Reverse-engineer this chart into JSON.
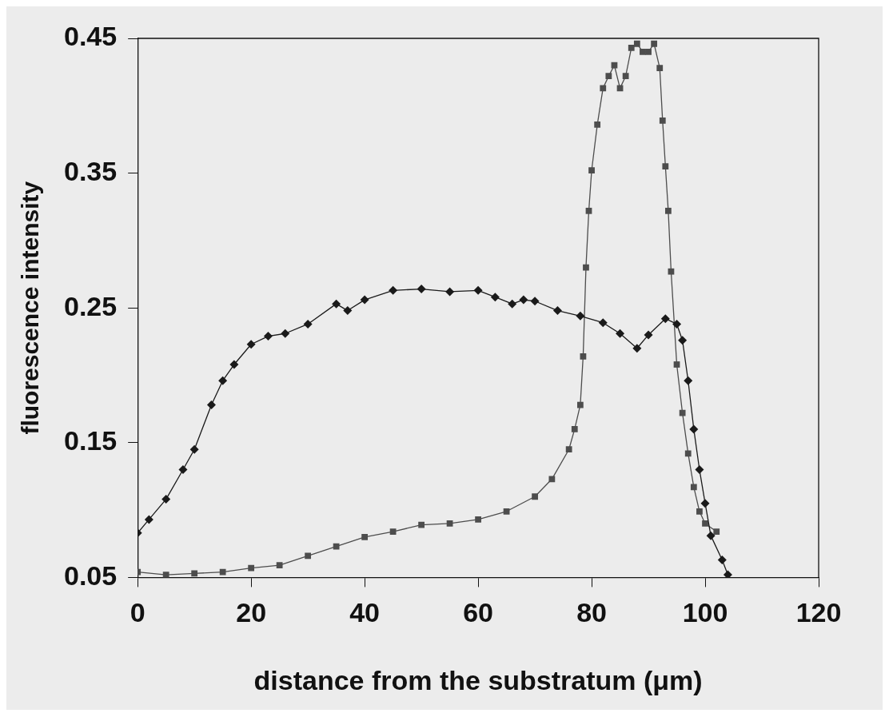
{
  "chart_data": {
    "type": "line",
    "xlabel": "distance from the substratum (μm)",
    "ylabel": "fluorescence intensity",
    "xlim": [
      0,
      120
    ],
    "xticks": [
      0,
      20,
      40,
      60,
      80,
      100,
      120
    ],
    "ylim": [
      0.05,
      0.45
    ],
    "yticks": [
      0.05,
      0.15,
      0.25,
      0.35,
      0.45
    ],
    "grid": false,
    "legend": false,
    "series": [
      {
        "color": "#1a1a1a",
        "marker": "diamond",
        "x": [
          0,
          2,
          5,
          8,
          10,
          13,
          15,
          17,
          20,
          23,
          26,
          30,
          35,
          37,
          40,
          45,
          50,
          55,
          60,
          63,
          66,
          68,
          70,
          74,
          78,
          82,
          85,
          88,
          90,
          93,
          95,
          96,
          97,
          98,
          99,
          100,
          101,
          103,
          104
        ],
        "values": [
          0.083,
          0.093,
          0.108,
          0.13,
          0.145,
          0.178,
          0.196,
          0.208,
          0.223,
          0.229,
          0.231,
          0.238,
          0.253,
          0.248,
          0.256,
          0.263,
          0.264,
          0.262,
          0.263,
          0.258,
          0.253,
          0.256,
          0.255,
          0.248,
          0.244,
          0.239,
          0.231,
          0.22,
          0.23,
          0.242,
          0.238,
          0.226,
          0.196,
          0.16,
          0.13,
          0.105,
          0.081,
          0.063,
          0.052
        ]
      },
      {
        "color": "#4d4d4d",
        "marker": "square",
        "x": [
          0,
          5,
          10,
          15,
          20,
          25,
          30,
          35,
          40,
          45,
          50,
          55,
          60,
          65,
          70,
          73,
          76,
          77,
          78,
          78.5,
          79,
          79.5,
          80,
          81,
          82,
          83,
          84,
          85,
          86,
          87,
          88,
          89,
          90,
          91,
          92,
          92.5,
          93,
          93.5,
          94,
          95,
          96,
          97,
          98,
          99,
          100,
          102
        ],
        "values": [
          0.054,
          0.052,
          0.053,
          0.054,
          0.057,
          0.059,
          0.066,
          0.073,
          0.08,
          0.084,
          0.089,
          0.09,
          0.093,
          0.099,
          0.11,
          0.123,
          0.145,
          0.16,
          0.178,
          0.214,
          0.28,
          0.322,
          0.352,
          0.386,
          0.413,
          0.422,
          0.43,
          0.413,
          0.422,
          0.443,
          0.446,
          0.44,
          0.44,
          0.446,
          0.428,
          0.389,
          0.355,
          0.322,
          0.277,
          0.208,
          0.172,
          0.142,
          0.117,
          0.099,
          0.09,
          0.084
        ]
      }
    ]
  }
}
